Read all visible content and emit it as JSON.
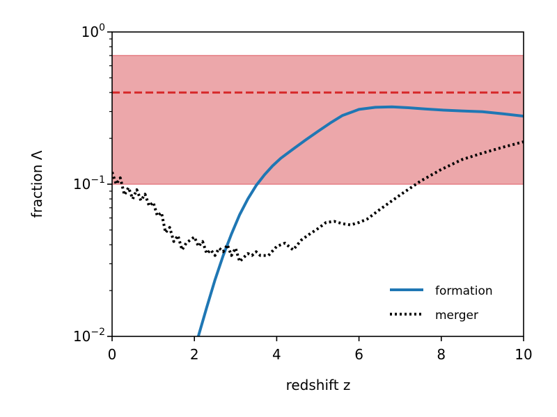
{
  "chart_data": {
    "type": "line",
    "title": "",
    "xlabel": "redshift z",
    "ylabel": "fraction Λ",
    "xlim": [
      0,
      10
    ],
    "ylim": [
      0.01,
      1
    ],
    "yscale": "log",
    "x_ticks": [
      0,
      2,
      4,
      6,
      8,
      10
    ],
    "x_tick_labels": [
      "0",
      "2",
      "4",
      "6",
      "8",
      "10"
    ],
    "y_ticks": [
      {
        "value": 1,
        "base": "10",
        "exp": "0"
      },
      {
        "value": 0.1,
        "base": "10",
        "exp": "−1"
      },
      {
        "value": 0.01,
        "base": "10",
        "exp": "−2"
      }
    ],
    "band": {
      "low": 0.1,
      "high": 0.7,
      "color": "#eca7aa",
      "edge_color": "#e57f85"
    },
    "reference_line": {
      "value": 0.4,
      "style": "dashed",
      "color": "#d62728"
    },
    "legend_position": "lower-right",
    "series": [
      {
        "name": "formation",
        "style": "solid",
        "color": "#1f77b4",
        "x": [
          2.1,
          2.3,
          2.5,
          2.7,
          2.9,
          3.1,
          3.3,
          3.5,
          3.7,
          3.9,
          4.1,
          4.4,
          4.7,
          5.0,
          5.3,
          5.6,
          6.0,
          6.4,
          6.8,
          7.2,
          7.6,
          8.0,
          8.5,
          9.0,
          9.5,
          10.0
        ],
        "values": [
          0.0101,
          0.0155,
          0.0235,
          0.034,
          0.047,
          0.063,
          0.08,
          0.098,
          0.115,
          0.132,
          0.148,
          0.17,
          0.195,
          0.222,
          0.252,
          0.283,
          0.31,
          0.32,
          0.322,
          0.318,
          0.312,
          0.307,
          0.303,
          0.299,
          0.29,
          0.28
        ]
      },
      {
        "name": "merger",
        "style": "dotted",
        "color": "#000000",
        "x": [
          0.0,
          0.1,
          0.2,
          0.3,
          0.4,
          0.5,
          0.6,
          0.7,
          0.8,
          0.9,
          1.0,
          1.1,
          1.2,
          1.3,
          1.4,
          1.5,
          1.6,
          1.7,
          1.8,
          1.9,
          2.0,
          2.1,
          2.2,
          2.3,
          2.4,
          2.5,
          2.6,
          2.7,
          2.8,
          2.9,
          3.0,
          3.1,
          3.2,
          3.3,
          3.4,
          3.5,
          3.6,
          3.8,
          4.0,
          4.2,
          4.4,
          4.6,
          4.8,
          5.0,
          5.2,
          5.4,
          5.6,
          5.8,
          6.0,
          6.2,
          6.5,
          7.0,
          7.5,
          8.0,
          8.5,
          9.0,
          9.5,
          10.0
        ],
        "values": [
          0.12,
          0.1,
          0.11,
          0.085,
          0.095,
          0.08,
          0.092,
          0.078,
          0.086,
          0.072,
          0.076,
          0.062,
          0.065,
          0.048,
          0.052,
          0.042,
          0.046,
          0.037,
          0.041,
          0.043,
          0.045,
          0.039,
          0.042,
          0.035,
          0.037,
          0.034,
          0.038,
          0.036,
          0.04,
          0.034,
          0.038,
          0.031,
          0.033,
          0.035,
          0.034,
          0.036,
          0.034,
          0.034,
          0.039,
          0.041,
          0.037,
          0.043,
          0.047,
          0.051,
          0.056,
          0.057,
          0.055,
          0.054,
          0.056,
          0.059,
          0.068,
          0.085,
          0.105,
          0.125,
          0.145,
          0.16,
          0.175,
          0.19
        ]
      }
    ]
  }
}
